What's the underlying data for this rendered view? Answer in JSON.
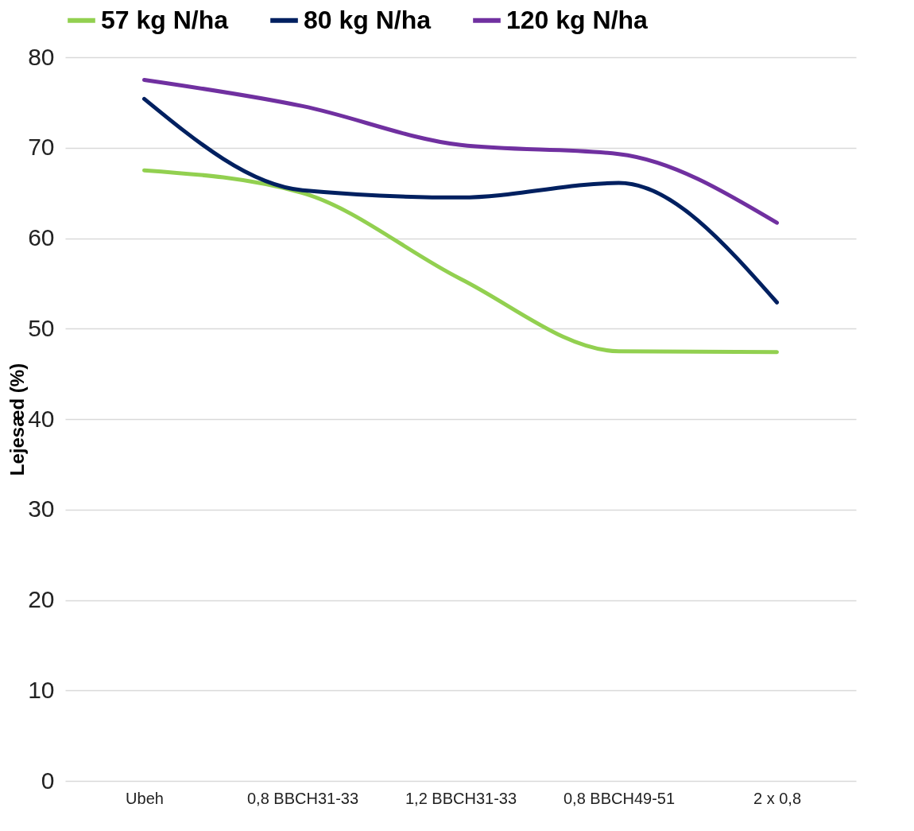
{
  "chart_data": {
    "type": "line",
    "ylabel": "Lejesæd (%)",
    "categories": [
      "Ubeh",
      "0,8 BBCH31-33",
      "1,2 BBCH31-33",
      "0,8 BBCH49-51",
      "2 x 0,8"
    ],
    "series": [
      {
        "name": "57 kg N/ha",
        "color": "#92d050",
        "values": [
          67.5,
          65.0,
          55.5,
          47.5,
          47.4
        ]
      },
      {
        "name": "80 kg N/ha",
        "color": "#002060",
        "values": [
          75.4,
          65.3,
          64.5,
          66.1,
          52.9
        ]
      },
      {
        "name": "120 kg N/ha",
        "color": "#7030a0",
        "values": [
          77.5,
          74.6,
          70.3,
          69.3,
          61.7
        ]
      }
    ],
    "ylim": [
      0,
      80
    ],
    "yticks": [
      0,
      10,
      20,
      30,
      40,
      50,
      60,
      70,
      80
    ],
    "grid": "y",
    "legend": "top",
    "marker": "none",
    "line_style": "solid"
  }
}
